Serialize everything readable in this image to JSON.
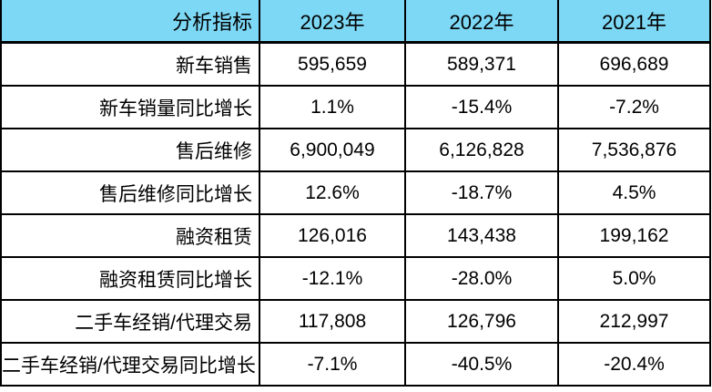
{
  "table": {
    "header": {
      "label_col": "分析指标",
      "years": [
        "2023年",
        "2022年",
        "2021年"
      ]
    },
    "rows": [
      {
        "label": "新车销售",
        "values": [
          "595,659",
          "589,371",
          "696,689"
        ]
      },
      {
        "label": "新车销量同比增长",
        "values": [
          "1.1%",
          "-15.4%",
          "-7.2%"
        ]
      },
      {
        "label": "售后维修",
        "values": [
          "6,900,049",
          "6,126,828",
          "7,536,876"
        ]
      },
      {
        "label": "售后维修同比增长",
        "values": [
          "12.6%",
          "-18.7%",
          "4.5%"
        ]
      },
      {
        "label": "融资租赁",
        "values": [
          "126,016",
          "143,438",
          "199,162"
        ]
      },
      {
        "label": "融资租赁同比增长",
        "values": [
          "-12.1%",
          "-28.0%",
          "5.0%"
        ]
      },
      {
        "label": "二手车经销/代理交易",
        "values": [
          "117,808",
          "126,796",
          "212,997"
        ]
      },
      {
        "label": "二手车经销/代理交易同比增长",
        "values": [
          "-7.1%",
          "-40.5%",
          "-20.4%"
        ]
      }
    ],
    "colors": {
      "header_bg": "#7DD8F5",
      "border": "#000000",
      "text": "#000000"
    }
  }
}
